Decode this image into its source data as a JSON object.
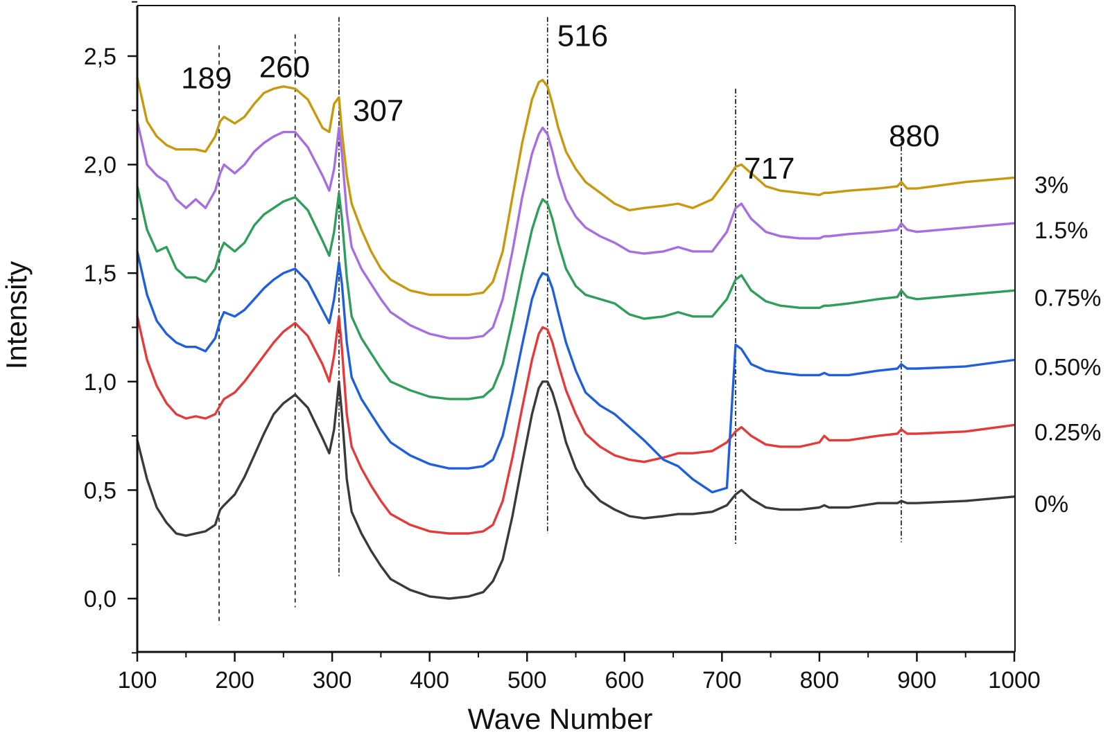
{
  "chart_data": {
    "type": "line",
    "title": "",
    "xlabel": "Wave Number",
    "ylabel": "Intensity",
    "xlim": [
      100,
      1000
    ],
    "ylim": [
      -0.25,
      2.75
    ],
    "x_ticks": [
      100,
      200,
      300,
      400,
      500,
      600,
      700,
      800,
      900,
      1000
    ],
    "x_tick_labels": [
      "100",
      "200",
      "300",
      "400",
      "500",
      "600",
      "700",
      "800",
      "900",
      "1000"
    ],
    "y_ticks": [
      0,
      0.5,
      1.0,
      1.5,
      2.0,
      2.5
    ],
    "y_tick_labels": [
      "0,0",
      "0,5",
      "1,0",
      "1,5",
      "2,0",
      "2,5"
    ],
    "grid": false,
    "legend_placement": "right",
    "peak_annotations": [
      {
        "label": "189",
        "x": 184,
        "y_top": 2.55,
        "y_bottom": -0.12
      },
      {
        "label": "260",
        "x": 262,
        "y_top": 2.6,
        "y_bottom": -0.04
      },
      {
        "label": "307",
        "x": 307,
        "y_top": 2.68,
        "y_bottom": 0.1
      },
      {
        "label": "516",
        "x": 521,
        "y_top": 2.68,
        "y_bottom": 0.3
      },
      {
        "label": "717",
        "x": 714,
        "y_top": 2.35,
        "y_bottom": 0.25
      },
      {
        "label": "880",
        "x": 884,
        "y_top": 2.18,
        "y_bottom": 0.26
      }
    ],
    "x": [
      100,
      110,
      120,
      130,
      140,
      150,
      160,
      170,
      180,
      185,
      189,
      200,
      210,
      220,
      230,
      240,
      250,
      262,
      275,
      290,
      297,
      302,
      307,
      310,
      315,
      320,
      330,
      340,
      350,
      360,
      380,
      400,
      420,
      440,
      455,
      465,
      475,
      485,
      495,
      505,
      512,
      516,
      521,
      526,
      532,
      540,
      550,
      560,
      575,
      590,
      605,
      620,
      640,
      655,
      670,
      690,
      705,
      714,
      720,
      730,
      745,
      760,
      780,
      800,
      805,
      810,
      830,
      860,
      880,
      884,
      890,
      900,
      950,
      1000
    ],
    "series": [
      {
        "name": "0%",
        "color": "#3a3a3a",
        "values": [
          0.73,
          0.55,
          0.42,
          0.35,
          0.3,
          0.29,
          0.3,
          0.31,
          0.34,
          0.41,
          0.43,
          0.48,
          0.56,
          0.66,
          0.76,
          0.85,
          0.9,
          0.94,
          0.88,
          0.74,
          0.67,
          0.78,
          1.0,
          0.85,
          0.55,
          0.4,
          0.3,
          0.22,
          0.15,
          0.09,
          0.04,
          0.01,
          0.0,
          0.01,
          0.03,
          0.08,
          0.18,
          0.38,
          0.62,
          0.85,
          0.97,
          1.0,
          1.0,
          0.95,
          0.86,
          0.72,
          0.6,
          0.52,
          0.45,
          0.41,
          0.38,
          0.37,
          0.38,
          0.39,
          0.39,
          0.4,
          0.43,
          0.48,
          0.5,
          0.46,
          0.42,
          0.41,
          0.41,
          0.42,
          0.43,
          0.42,
          0.42,
          0.44,
          0.44,
          0.45,
          0.44,
          0.44,
          0.45,
          0.47
        ]
      },
      {
        "name": "0.25%",
        "color": "#e53a3a",
        "values": [
          1.3,
          1.1,
          0.98,
          0.9,
          0.85,
          0.83,
          0.84,
          0.83,
          0.85,
          0.89,
          0.92,
          0.95,
          1.0,
          1.06,
          1.12,
          1.18,
          1.23,
          1.27,
          1.21,
          1.08,
          1.0,
          1.12,
          1.3,
          1.15,
          0.85,
          0.7,
          0.6,
          0.52,
          0.45,
          0.39,
          0.34,
          0.31,
          0.3,
          0.3,
          0.31,
          0.34,
          0.45,
          0.65,
          0.88,
          1.1,
          1.22,
          1.25,
          1.24,
          1.18,
          1.08,
          0.96,
          0.85,
          0.76,
          0.7,
          0.66,
          0.64,
          0.63,
          0.65,
          0.67,
          0.67,
          0.68,
          0.72,
          0.77,
          0.79,
          0.75,
          0.71,
          0.7,
          0.7,
          0.72,
          0.75,
          0.73,
          0.73,
          0.75,
          0.76,
          0.78,
          0.76,
          0.76,
          0.77,
          0.8
        ]
      },
      {
        "name": "0.50%",
        "color": "#1f5fdc",
        "values": [
          1.6,
          1.4,
          1.28,
          1.22,
          1.18,
          1.16,
          1.16,
          1.14,
          1.2,
          1.28,
          1.32,
          1.3,
          1.33,
          1.38,
          1.43,
          1.47,
          1.5,
          1.52,
          1.46,
          1.33,
          1.27,
          1.38,
          1.55,
          1.45,
          1.18,
          1.02,
          0.92,
          0.85,
          0.78,
          0.72,
          0.66,
          0.62,
          0.6,
          0.6,
          0.61,
          0.64,
          0.75,
          0.95,
          1.17,
          1.38,
          1.47,
          1.5,
          1.49,
          1.43,
          1.32,
          1.18,
          1.05,
          0.95,
          0.89,
          0.85,
          0.79,
          0.73,
          0.64,
          0.61,
          0.55,
          0.49,
          0.51,
          1.17,
          1.15,
          1.08,
          1.05,
          1.04,
          1.03,
          1.03,
          1.04,
          1.03,
          1.03,
          1.05,
          1.06,
          1.08,
          1.06,
          1.06,
          1.07,
          1.1
        ]
      },
      {
        "name": "0.75%",
        "color": "#2f9e5a",
        "values": [
          1.9,
          1.7,
          1.6,
          1.62,
          1.52,
          1.48,
          1.48,
          1.46,
          1.52,
          1.6,
          1.64,
          1.6,
          1.64,
          1.72,
          1.77,
          1.8,
          1.83,
          1.85,
          1.79,
          1.65,
          1.58,
          1.69,
          1.87,
          1.75,
          1.48,
          1.3,
          1.2,
          1.13,
          1.06,
          1.0,
          0.96,
          0.93,
          0.92,
          0.92,
          0.93,
          0.97,
          1.08,
          1.28,
          1.5,
          1.7,
          1.8,
          1.84,
          1.82,
          1.75,
          1.64,
          1.52,
          1.44,
          1.4,
          1.38,
          1.36,
          1.31,
          1.29,
          1.3,
          1.32,
          1.3,
          1.3,
          1.38,
          1.47,
          1.49,
          1.42,
          1.37,
          1.35,
          1.34,
          1.34,
          1.35,
          1.35,
          1.36,
          1.38,
          1.39,
          1.42,
          1.39,
          1.38,
          1.4,
          1.42
        ]
      },
      {
        "name": "1.5%",
        "color": "#a66ee0",
        "values": [
          2.2,
          2.0,
          1.95,
          1.92,
          1.84,
          1.8,
          1.84,
          1.8,
          1.88,
          1.96,
          2.0,
          1.96,
          2.0,
          2.06,
          2.1,
          2.13,
          2.15,
          2.15,
          2.08,
          1.95,
          1.88,
          1.98,
          2.17,
          2.05,
          1.78,
          1.62,
          1.52,
          1.45,
          1.38,
          1.32,
          1.26,
          1.22,
          1.2,
          1.2,
          1.21,
          1.25,
          1.38,
          1.6,
          1.85,
          2.05,
          2.14,
          2.17,
          2.14,
          2.06,
          1.95,
          1.84,
          1.76,
          1.71,
          1.67,
          1.64,
          1.6,
          1.59,
          1.6,
          1.62,
          1.6,
          1.6,
          1.69,
          1.8,
          1.82,
          1.75,
          1.69,
          1.67,
          1.66,
          1.66,
          1.67,
          1.67,
          1.68,
          1.69,
          1.7,
          1.73,
          1.7,
          1.69,
          1.71,
          1.73
        ]
      },
      {
        "name": "3%",
        "color": "#c8980e",
        "values": [
          2.4,
          2.2,
          2.13,
          2.09,
          2.07,
          2.07,
          2.07,
          2.06,
          2.13,
          2.2,
          2.22,
          2.19,
          2.22,
          2.28,
          2.33,
          2.35,
          2.36,
          2.35,
          2.3,
          2.17,
          2.15,
          2.28,
          2.31,
          2.15,
          1.95,
          1.82,
          1.7,
          1.6,
          1.52,
          1.47,
          1.42,
          1.4,
          1.4,
          1.4,
          1.41,
          1.46,
          1.6,
          1.85,
          2.1,
          2.3,
          2.38,
          2.39,
          2.36,
          2.28,
          2.17,
          2.06,
          1.98,
          1.92,
          1.87,
          1.82,
          1.79,
          1.8,
          1.81,
          1.82,
          1.8,
          1.84,
          1.93,
          1.99,
          2.0,
          1.96,
          1.9,
          1.88,
          1.87,
          1.86,
          1.87,
          1.87,
          1.88,
          1.89,
          1.9,
          1.92,
          1.89,
          1.89,
          1.92,
          1.94
        ]
      }
    ]
  }
}
